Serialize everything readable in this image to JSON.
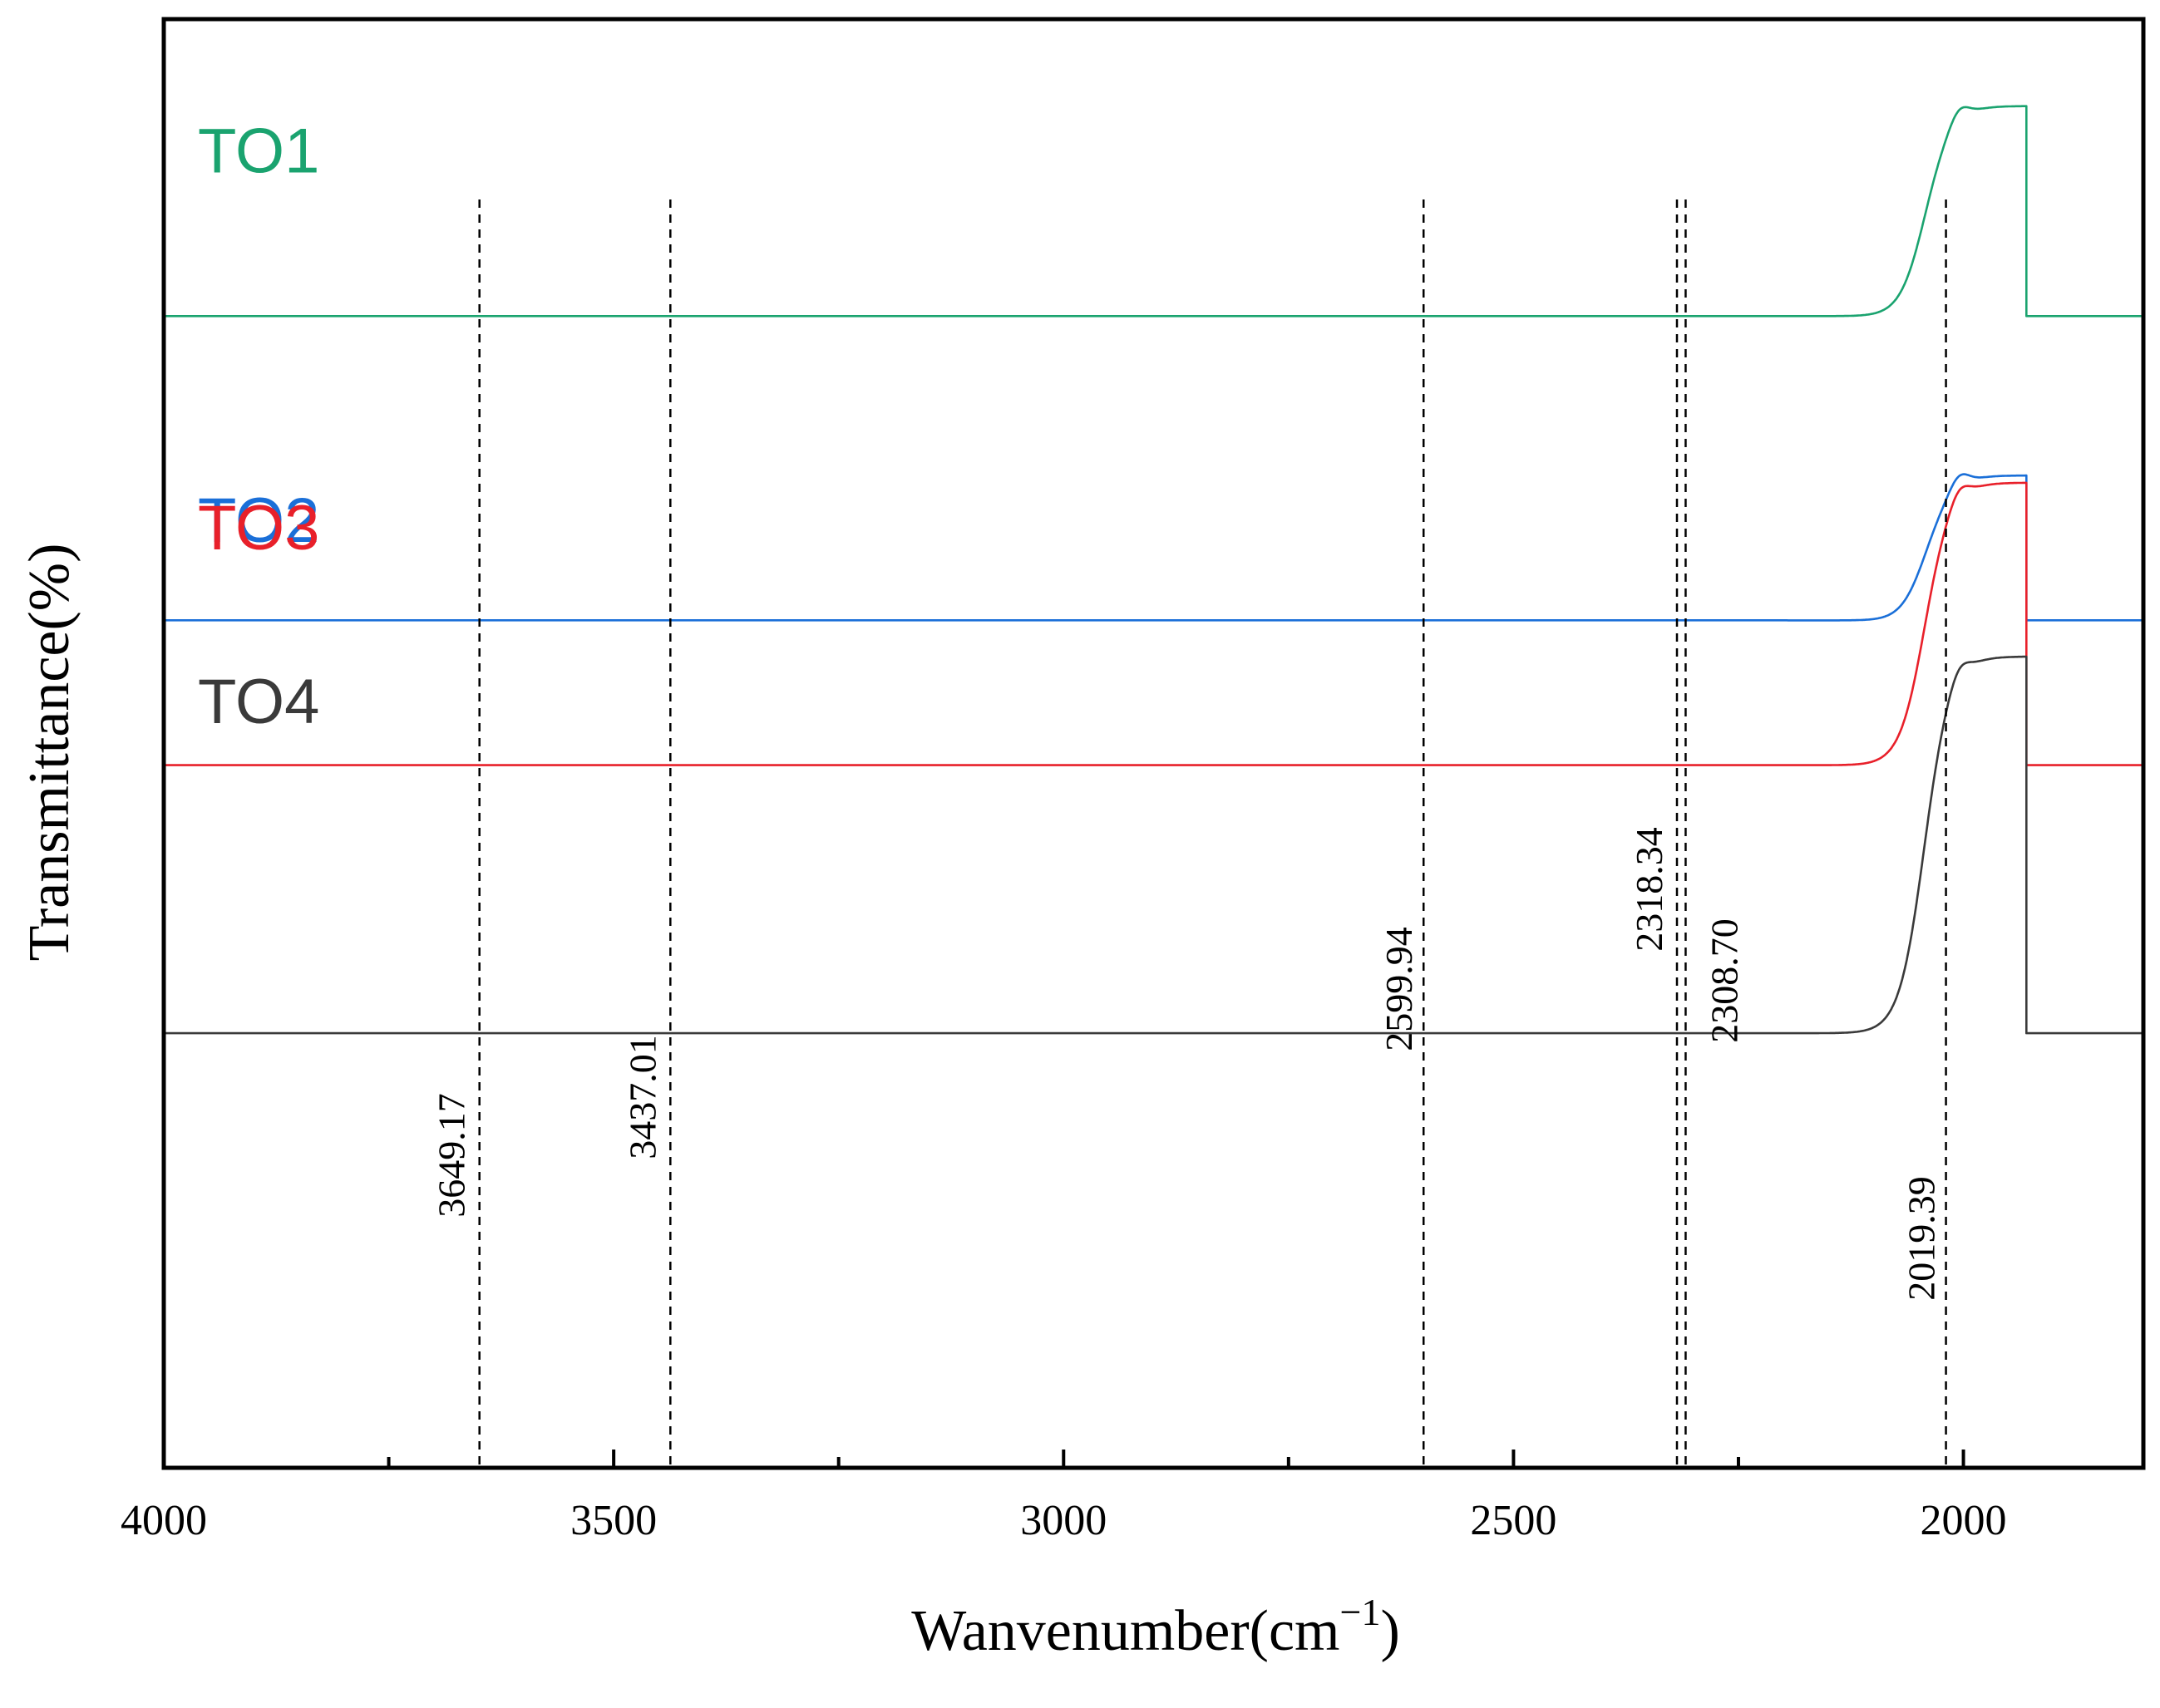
{
  "chart_data": {
    "type": "line",
    "title": "",
    "xlabel": "Wanvenumber(cm",
    "xlabel_sup": "−1",
    "xlabel_close": ")",
    "ylabel": "Transmittance(%)",
    "xlim": [
      4000,
      1800
    ],
    "x_ticks": [
      {
        "value": 4000,
        "label": "4000"
      },
      {
        "value": 3500,
        "label": "3500"
      },
      {
        "value": 3000,
        "label": "3000"
      },
      {
        "value": 2500,
        "label": "2500"
      },
      {
        "value": 2000,
        "label": "2000"
      }
    ],
    "x_minor_ticks": [
      3750,
      3250,
      2750,
      2250
    ],
    "y_ticks": [],
    "ylim": [
      0,
      100
    ],
    "series": [
      {
        "name": "TO1",
        "color": "#1aa36f",
        "offset": 94,
        "level": 79.5
      },
      {
        "name": "TO2",
        "color": "#1a6fd8",
        "offset": 68.5,
        "level": 58.5
      },
      {
        "name": "TO3",
        "color": "#e8202a",
        "offset": 68,
        "level": 48.5
      },
      {
        "name": "TO4",
        "color": "#3a3a3a",
        "offset": 56,
        "level": 30
      }
    ],
    "peaks": [
      {
        "value": 3649.17,
        "label": "3649.17"
      },
      {
        "value": 3437.01,
        "label": "3437.01"
      },
      {
        "value": 2599.94,
        "label": "2599.94"
      },
      {
        "value": 2318.34,
        "label": "2318.34"
      },
      {
        "value": 2308.7,
        "label": "2308.70"
      },
      {
        "value": 2019.39,
        "label": "2019.39"
      }
    ],
    "grid": false,
    "legend": "inline-left"
  }
}
